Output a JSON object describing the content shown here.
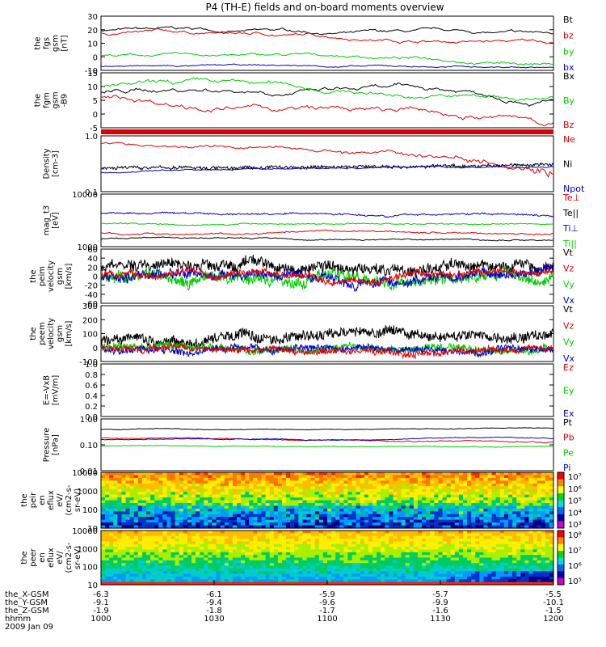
{
  "title": "P4 (TH-E) fields and on-board moments overview",
  "colors": {
    "black": "#000000",
    "red": "#dd0000",
    "green": "#00cc00",
    "blue": "#0000cc"
  },
  "panels": [
    {
      "id": "fgs",
      "ylabel": [
        "the",
        "fgs",
        "gsm",
        "[nT]"
      ],
      "yticks": [
        "30",
        "20",
        "10",
        "0",
        "-10"
      ],
      "ylim": [
        -10,
        30
      ],
      "legend": [
        {
          "text": "Bt",
          "color": "black"
        },
        {
          "text": "bz",
          "color": "red"
        },
        {
          "text": "by",
          "color": "green"
        },
        {
          "text": "bx",
          "color": "blue"
        }
      ]
    },
    {
      "id": "fgm",
      "ylabel": [
        "the",
        "fgm",
        "gsm",
        "-B9"
      ],
      "yticks": [
        "15",
        "10",
        "5",
        "0",
        "-5"
      ],
      "ylim": [
        -7,
        15
      ],
      "legend": [
        {
          "text": "Bx",
          "color": "black"
        },
        {
          "text": "By",
          "color": "green"
        },
        {
          "text": "Bz",
          "color": "red"
        }
      ]
    },
    {
      "id": "density",
      "ylabel": [
        "Density",
        "[cm-3]"
      ],
      "yticks": [
        "1.0",
        "0.1"
      ],
      "ylim": [
        0.1,
        1.2
      ],
      "log": true,
      "legend": [
        {
          "text": "Ne",
          "color": "red"
        },
        {
          "text": "Ni",
          "color": "black"
        },
        {
          "text": "Npot",
          "color": "blue"
        }
      ]
    },
    {
      "id": "temp",
      "ylabel": [
        "mag_t3",
        "[eV]"
      ],
      "yticks": [
        "10000",
        "1000"
      ],
      "ylim": [
        1000,
        15000
      ],
      "log": true,
      "legend": [
        {
          "text": "Te⊥",
          "color": "red"
        },
        {
          "text": "Te||",
          "color": "black"
        },
        {
          "text": "Ti⊥",
          "color": "blue"
        },
        {
          "text": "Ti||",
          "color": "green"
        }
      ]
    },
    {
      "id": "peim",
      "ylabel": [
        "the",
        "peim",
        "velocity",
        "gsm",
        "[km/s]"
      ],
      "yticks": [
        "60",
        "40",
        "20",
        "0",
        "-20",
        "-40",
        "-60"
      ],
      "ylim": [
        -60,
        60
      ],
      "legend": [
        {
          "text": "Vt",
          "color": "black"
        },
        {
          "text": "Vz",
          "color": "red"
        },
        {
          "text": "Vy",
          "color": "green"
        },
        {
          "text": "Vx",
          "color": "blue"
        }
      ]
    },
    {
      "id": "peem",
      "ylabel": [
        "the",
        "peem",
        "velocity",
        "gsm",
        "[km/s]"
      ],
      "yticks": [
        "300",
        "200",
        "100",
        "0",
        "-100"
      ],
      "ylim": [
        -100,
        300
      ],
      "legend": [
        {
          "text": "Vt",
          "color": "black"
        },
        {
          "text": "Vz",
          "color": "red"
        },
        {
          "text": "Vy",
          "color": "green"
        },
        {
          "text": "Vx",
          "color": "blue"
        }
      ]
    },
    {
      "id": "efield",
      "ylabel": [
        "E=-VxB",
        "[mV/m]"
      ],
      "yticks": [
        "1.0",
        "0.8",
        "0.6",
        "0.4",
        "0.2",
        "0.0"
      ],
      "ylim": [
        0,
        1
      ],
      "legend": [
        {
          "text": "Ez",
          "color": "red"
        },
        {
          "text": "Ey",
          "color": "green"
        },
        {
          "text": "Ex",
          "color": "blue"
        }
      ]
    },
    {
      "id": "pressure",
      "ylabel": [
        "Pressure",
        "[nPa]"
      ],
      "yticks": [
        "1.00",
        "0.10",
        "0.01"
      ],
      "ylim": [
        0.01,
        1.5
      ],
      "log": true,
      "legend": [
        {
          "text": "Pt",
          "color": "black"
        },
        {
          "text": "Pb",
          "color": "red"
        },
        {
          "text": "Pe",
          "color": "green"
        },
        {
          "text": "Pi",
          "color": "blue"
        }
      ]
    },
    {
      "id": "peir",
      "ylabel": [
        "the",
        "peir",
        "en",
        "eflux",
        "eV/",
        "(cm2-s-",
        "sr-eV)"
      ],
      "yticks": [
        "10000",
        "1000",
        "100",
        "10"
      ],
      "cbar": [
        "10⁷",
        "10⁶",
        "10⁵",
        "10⁴",
        "10³"
      ]
    },
    {
      "id": "peer",
      "ylabel": [
        "the",
        "peer",
        "en",
        "eflux",
        "eV/",
        "(cm2-s-",
        "sr-eV)"
      ],
      "yticks": [
        "10000",
        "1000",
        "100",
        "10"
      ],
      "cbar": [
        "10⁸",
        "10⁷",
        "10⁶",
        "10⁵"
      ]
    }
  ],
  "chart_data": {
    "type": "line",
    "title": "P4 (TH-E) fields and on-board moments overview",
    "x": [
      "1000",
      "1030",
      "1100",
      "1130",
      "1200"
    ],
    "xlabel": "hhmm",
    "series": [
      {
        "name": "Bt",
        "values": [
          20,
          18,
          14,
          15,
          15
        ]
      },
      {
        "name": "bz",
        "values": [
          18,
          16,
          12,
          13,
          11
        ]
      },
      {
        "name": "by",
        "values": [
          1,
          2,
          1,
          0,
          -7
        ]
      },
      {
        "name": "bx",
        "values": [
          -7,
          -6,
          -7,
          -7,
          -8
        ]
      },
      {
        "name": "Bx",
        "values": [
          7,
          10,
          8,
          8,
          8
        ]
      },
      {
        "name": "By",
        "values": [
          10,
          9,
          7,
          6,
          3
        ]
      },
      {
        "name": "Bz",
        "values": [
          5,
          3,
          -1,
          -2,
          -5
        ]
      },
      {
        "name": "Ne",
        "values": [
          0.85,
          0.7,
          0.85,
          0.5,
          0.4
        ]
      },
      {
        "name": "Ni",
        "values": [
          0.27,
          0.29,
          0.3,
          0.32,
          0.33
        ]
      },
      {
        "name": "Npot",
        "values": [
          0.23,
          0.25,
          0.27,
          0.29,
          0.31
        ]
      }
    ]
  },
  "xaxis": {
    "rows": [
      {
        "label": "the_X-GSM",
        "values": [
          "-6.3",
          "-6.1",
          "-5.9",
          "-5.7",
          "-5.5"
        ]
      },
      {
        "label": "the_Y-GSM",
        "values": [
          "-9.1",
          "-9.4",
          "-9.6",
          "-9.9",
          "-10.1"
        ]
      },
      {
        "label": "the_Z-GSM",
        "values": [
          "-1.9",
          "-1.8",
          "-1.7",
          "-1.6",
          "-1.5"
        ]
      },
      {
        "label": "hhmm",
        "values": [
          "1000",
          "1030",
          "1100",
          "1130",
          "1200"
        ]
      }
    ],
    "date": "2009 Jan 09"
  }
}
